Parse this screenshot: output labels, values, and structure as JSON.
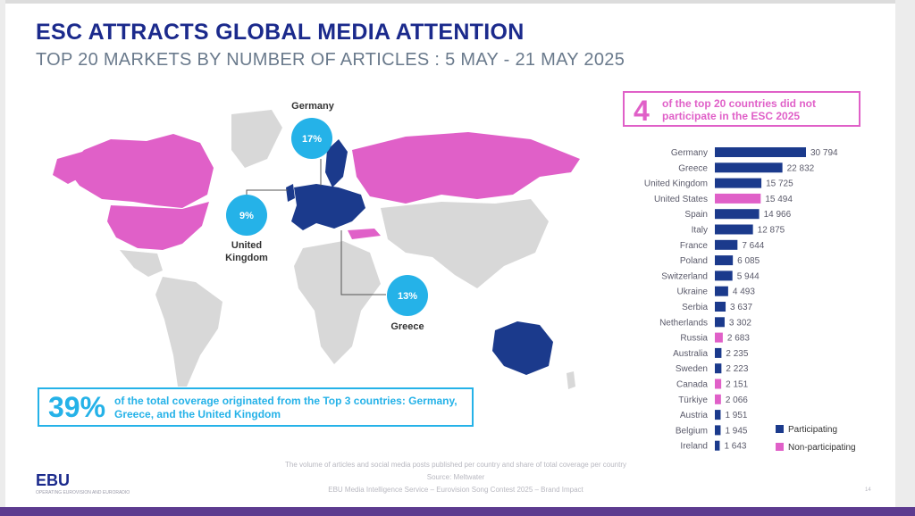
{
  "header": {
    "title": "ESC ATTRACTS GLOBAL MEDIA ATTENTION",
    "subtitle": "TOP 20 MARKETS BY NUMBER OF ARTICLES : 5 MAY - 21 MAY 2025"
  },
  "callout": {
    "number": "4",
    "text": "of the top 20 countries did not participate in the ESC 2025"
  },
  "map": {
    "bubbles": [
      {
        "percent": "17%",
        "country": "Germany"
      },
      {
        "percent": "9%",
        "country": "United Kingdom"
      },
      {
        "percent": "13%",
        "country": "Greece"
      }
    ],
    "colors": {
      "participating": "#1b3a8c",
      "non_participating": "#e060c8",
      "land": "#d8d8d8",
      "bubble": "#25b2e8"
    }
  },
  "banner": {
    "percent": "39%",
    "text": "of the total coverage originated from the Top 3 countries: Germany, Greece, and the United Kingdom"
  },
  "chart_data": {
    "type": "bar",
    "orientation": "horizontal",
    "categories": [
      "Germany",
      "Greece",
      "United Kingdom",
      "United States",
      "Spain",
      "Italy",
      "France",
      "Poland",
      "Switzerland",
      "Ukraine",
      "Serbia",
      "Netherlands",
      "Russia",
      "Australia",
      "Sweden",
      "Canada",
      "Türkiye",
      "Austria",
      "Belgium",
      "Ireland"
    ],
    "values": [
      30794,
      22832,
      15725,
      15494,
      14966,
      12875,
      7644,
      6085,
      5944,
      4493,
      3637,
      3302,
      2683,
      2235,
      2223,
      2151,
      2066,
      1951,
      1945,
      1643
    ],
    "value_labels": [
      "30 794",
      "22 832",
      "15 725",
      "15 494",
      "14 966",
      "12 875",
      "7 644",
      "6 085",
      "5 944",
      "4 493",
      "3 637",
      "3 302",
      "2 683",
      "2 235",
      "2 223",
      "2 151",
      "2 066",
      "1 951",
      "1 945",
      "1 643"
    ],
    "groups": [
      "Participating",
      "Participating",
      "Participating",
      "Non-participating",
      "Participating",
      "Participating",
      "Participating",
      "Participating",
      "Participating",
      "Participating",
      "Participating",
      "Participating",
      "Non-participating",
      "Participating",
      "Participating",
      "Non-participating",
      "Non-participating",
      "Participating",
      "Participating",
      "Participating"
    ],
    "legend": [
      {
        "name": "Participating",
        "color": "#1b3a8c"
      },
      {
        "name": "Non-participating",
        "color": "#e060c8"
      }
    ],
    "legend_position": "bottom-right",
    "xlim": [
      0,
      30794
    ]
  },
  "footer": {
    "note1": "The volume of articles and social media posts published per country and share of total coverage per country",
    "note2": "Source: Meltwater",
    "note3": "EBU Media Intelligence Service – Eurovision Song Contest 2025 – Brand Impact",
    "logo": "EBU",
    "logo_sub": "OPERATING EUROVISION AND EURORADIO",
    "page": "14"
  }
}
